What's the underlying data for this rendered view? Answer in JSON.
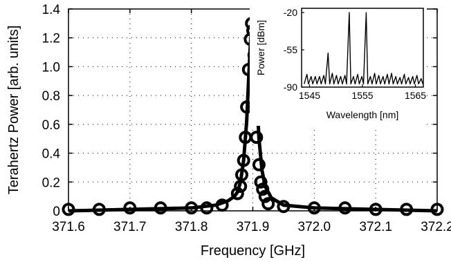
{
  "chart_data": [
    {
      "type": "line",
      "xlabel": "Frequency [GHz]",
      "ylabel": "Terahertz Power [arb. units]",
      "xlim": [
        371.6,
        372.2
      ],
      "ylim": [
        0,
        1.4
      ],
      "x_ticks": [
        "371.6",
        "371.7",
        "371.8",
        "371.9",
        "372.0",
        "372.1",
        "372.2"
      ],
      "y_ticks": [
        "0",
        "0.2",
        "0.4",
        "0.6",
        "0.8",
        "1.0",
        "1.2",
        "1.4"
      ],
      "grid": true,
      "series": [
        {
          "style": "circle markers (measured)",
          "color": "#000000",
          "x": [
            371.6,
            371.65,
            371.7,
            371.75,
            371.8,
            371.825,
            371.85,
            371.875,
            371.88,
            371.882,
            371.885,
            371.888,
            371.89,
            371.893,
            371.896,
            371.898,
            371.9,
            371.902,
            371.904,
            371.906,
            371.91,
            371.913,
            371.916,
            371.92,
            371.925,
            371.95,
            372.0,
            372.05,
            372.1,
            372.15,
            372.2
          ],
          "values": [
            0.01,
            0.01,
            0.02,
            0.02,
            0.02,
            0.02,
            0.04,
            0.12,
            0.17,
            0.25,
            0.35,
            0.51,
            0.72,
            0.98,
            1.19,
            1.3,
            1.25,
            1.08,
            0.72,
            0.51,
            0.32,
            0.2,
            0.15,
            0.1,
            0.05,
            0.03,
            0.02,
            0.02,
            0.01,
            0.01,
            0.01
          ]
        },
        {
          "style": "solid line (fit)",
          "color": "#000000",
          "x": [
            371.6,
            371.7,
            371.8,
            371.84,
            371.86,
            371.87,
            371.875,
            371.88,
            371.885,
            371.89,
            371.893,
            371.896,
            371.898,
            371.9,
            371.902,
            371.904,
            371.907,
            371.91,
            371.915,
            371.92,
            371.93,
            371.95,
            372.0,
            372.2
          ],
          "values": [
            0.0,
            0.01,
            0.02,
            0.04,
            0.07,
            0.1,
            0.13,
            0.2,
            0.35,
            0.62,
            0.9,
            1.15,
            1.27,
            1.3,
            1.22,
            1.05,
            0.75,
            0.5,
            0.28,
            0.17,
            0.09,
            0.04,
            0.02,
            0.0
          ]
        }
      ]
    },
    {
      "type": "line",
      "xlabel": "Wavelength [nm]",
      "ylabel": "Power [dBm]",
      "xlim": [
        1543.5,
        1566.5
      ],
      "ylim": [
        -90,
        -16
      ],
      "x_ticks": [
        "1545",
        "1555",
        "1565"
      ],
      "y_ticks": [
        "-20",
        "-55",
        "-90"
      ],
      "grid": false,
      "series": [
        {
          "style": "thin line",
          "color": "#000000",
          "x": [
            1544,
            1544.5,
            1544.8,
            1545.3,
            1545.6,
            1546.1,
            1546.4,
            1546.9,
            1547.2,
            1547.7,
            1548.0,
            1548.5,
            1548.8,
            1549.3,
            1549.6,
            1550.1,
            1550.4,
            1550.9,
            1551.2,
            1551.7,
            1552.0,
            1552.5,
            1552.8,
            1553.3,
            1553.6,
            1554.1,
            1554.4,
            1554.9,
            1555.2,
            1555.7,
            1556.0,
            1556.5,
            1556.8,
            1557.3,
            1557.6,
            1558.1,
            1558.4,
            1558.9,
            1559.2,
            1559.7,
            1560.0,
            1560.5,
            1560.8,
            1561.3,
            1561.6,
            1562.1,
            1562.4,
            1562.9,
            1563.2,
            1563.7,
            1564.0,
            1564.5,
            1564.8,
            1565.3,
            1565.6,
            1566.1,
            1566.4
          ],
          "values": [
            -87,
            -78,
            -87,
            -80,
            -87,
            -80,
            -87,
            -80,
            -87,
            -79,
            -87,
            -58,
            -87,
            -77,
            -87,
            -79,
            -87,
            -80,
            -87,
            -79,
            -87,
            -20,
            -87,
            -80,
            -87,
            -78,
            -87,
            -80,
            -87,
            -20,
            -87,
            -80,
            -87,
            -77,
            -87,
            -79,
            -87,
            -80,
            -87,
            -78,
            -87,
            -77,
            -87,
            -80,
            -87,
            -81,
            -87,
            -78,
            -87,
            -81,
            -87,
            -80,
            -87,
            -79,
            -87,
            -82,
            -87
          ]
        }
      ]
    }
  ]
}
